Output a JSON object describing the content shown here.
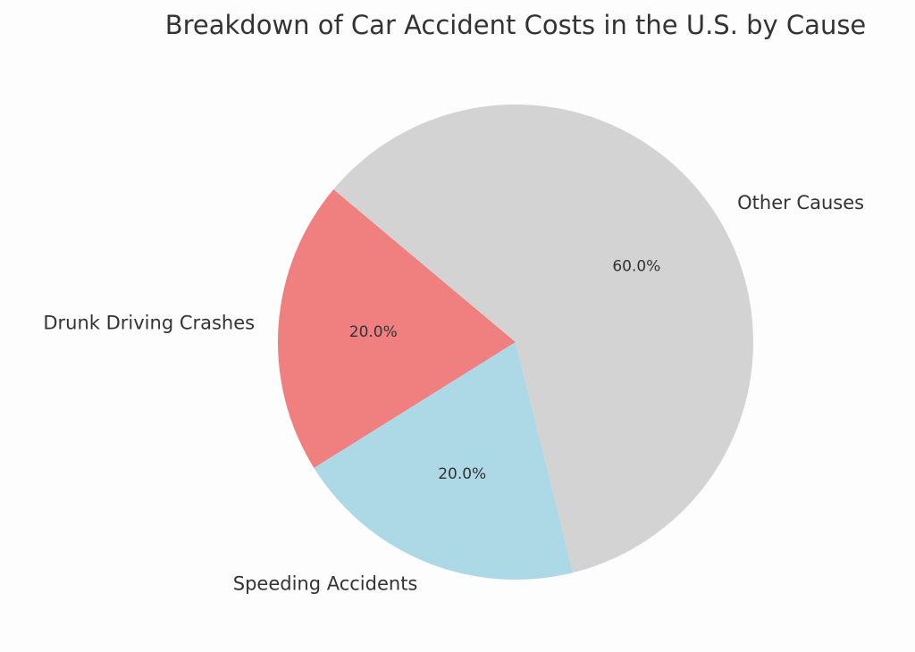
{
  "chart_data": {
    "type": "pie",
    "title": "Breakdown of Car Accident Costs in the U.S. by Cause",
    "start_angle_deg": 140,
    "direction": "counterclockwise",
    "slices": [
      {
        "label": "Drunk Driving Crashes",
        "value": 20,
        "pct_label": "20.0%",
        "color": "#f08080"
      },
      {
        "label": "Speeding Accidents",
        "value": 20,
        "pct_label": "20.0%",
        "color": "#add8e6"
      },
      {
        "label": "Other Causes",
        "value": 60,
        "pct_label": "60.0%",
        "color": "#d3d3d3"
      }
    ]
  }
}
